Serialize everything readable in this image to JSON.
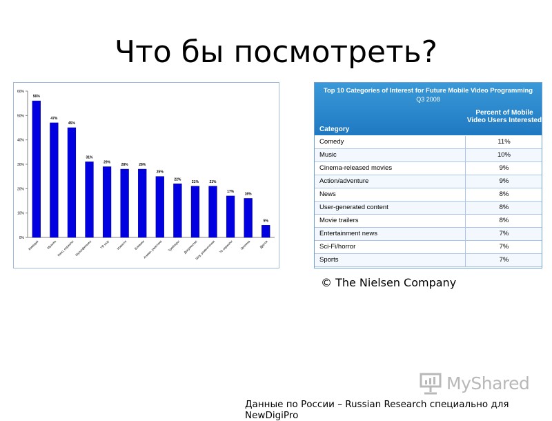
{
  "slide": {
    "title": "Что бы посмотреть?",
    "copyright": "© The Nielsen Company",
    "footer": "Данные по России – Russian Research специально для NewDigiPro",
    "logo_text": "MyShared",
    "logo_icon": "presentation-board-icon"
  },
  "chart_data": {
    "type": "bar",
    "categories": [
      "Комедии",
      "Музыка",
      "Кино, сериалы",
      "Мультфильмы",
      "ТВ шоу",
      "Новости",
      "Боевики",
      "Аниме, ужастики",
      "Трейлеры",
      "Документал",
      "Шоу, развлечения",
      "Тв сериалы",
      "Эротика",
      "Другое"
    ],
    "values": [
      56,
      47,
      45,
      31,
      29,
      28,
      28,
      25,
      22,
      21,
      21,
      17,
      16,
      5
    ],
    "data_labels": [
      "56%",
      "47%",
      "45%",
      "31%",
      "29%",
      "28%",
      "28%",
      "25%",
      "22%",
      "21%",
      "21%",
      "17%",
      "16%",
      "5%"
    ],
    "ylim": [
      0,
      60
    ],
    "yticks": [
      "0%",
      "10%",
      "20%",
      "30%",
      "40%",
      "50%",
      "60%"
    ],
    "bar_color": "#0000e0",
    "grid": false,
    "title": "",
    "xlabel": "",
    "ylabel": ""
  },
  "table": {
    "title": "Top 10 Categories of Interest for Future Mobile Video Programming",
    "subtitle": "Q3 2008",
    "col_category": "Category",
    "col_percent": "Percent of Mobile Video Users Interested",
    "header_color": "#2a8ad0",
    "rows": [
      {
        "category": "Comedy",
        "percent": "11%"
      },
      {
        "category": "Music",
        "percent": "10%"
      },
      {
        "category": "Cinema-released movies",
        "percent": "9%"
      },
      {
        "category": "Action/adventure",
        "percent": "9%"
      },
      {
        "category": "News",
        "percent": "8%"
      },
      {
        "category": "User-generated content",
        "percent": "8%"
      },
      {
        "category": "Movie trailers",
        "percent": "8%"
      },
      {
        "category": "Entertainment news",
        "percent": "7%"
      },
      {
        "category": "Sci-Fi/horror",
        "percent": "7%"
      },
      {
        "category": "Sports",
        "percent": "7%"
      }
    ]
  }
}
